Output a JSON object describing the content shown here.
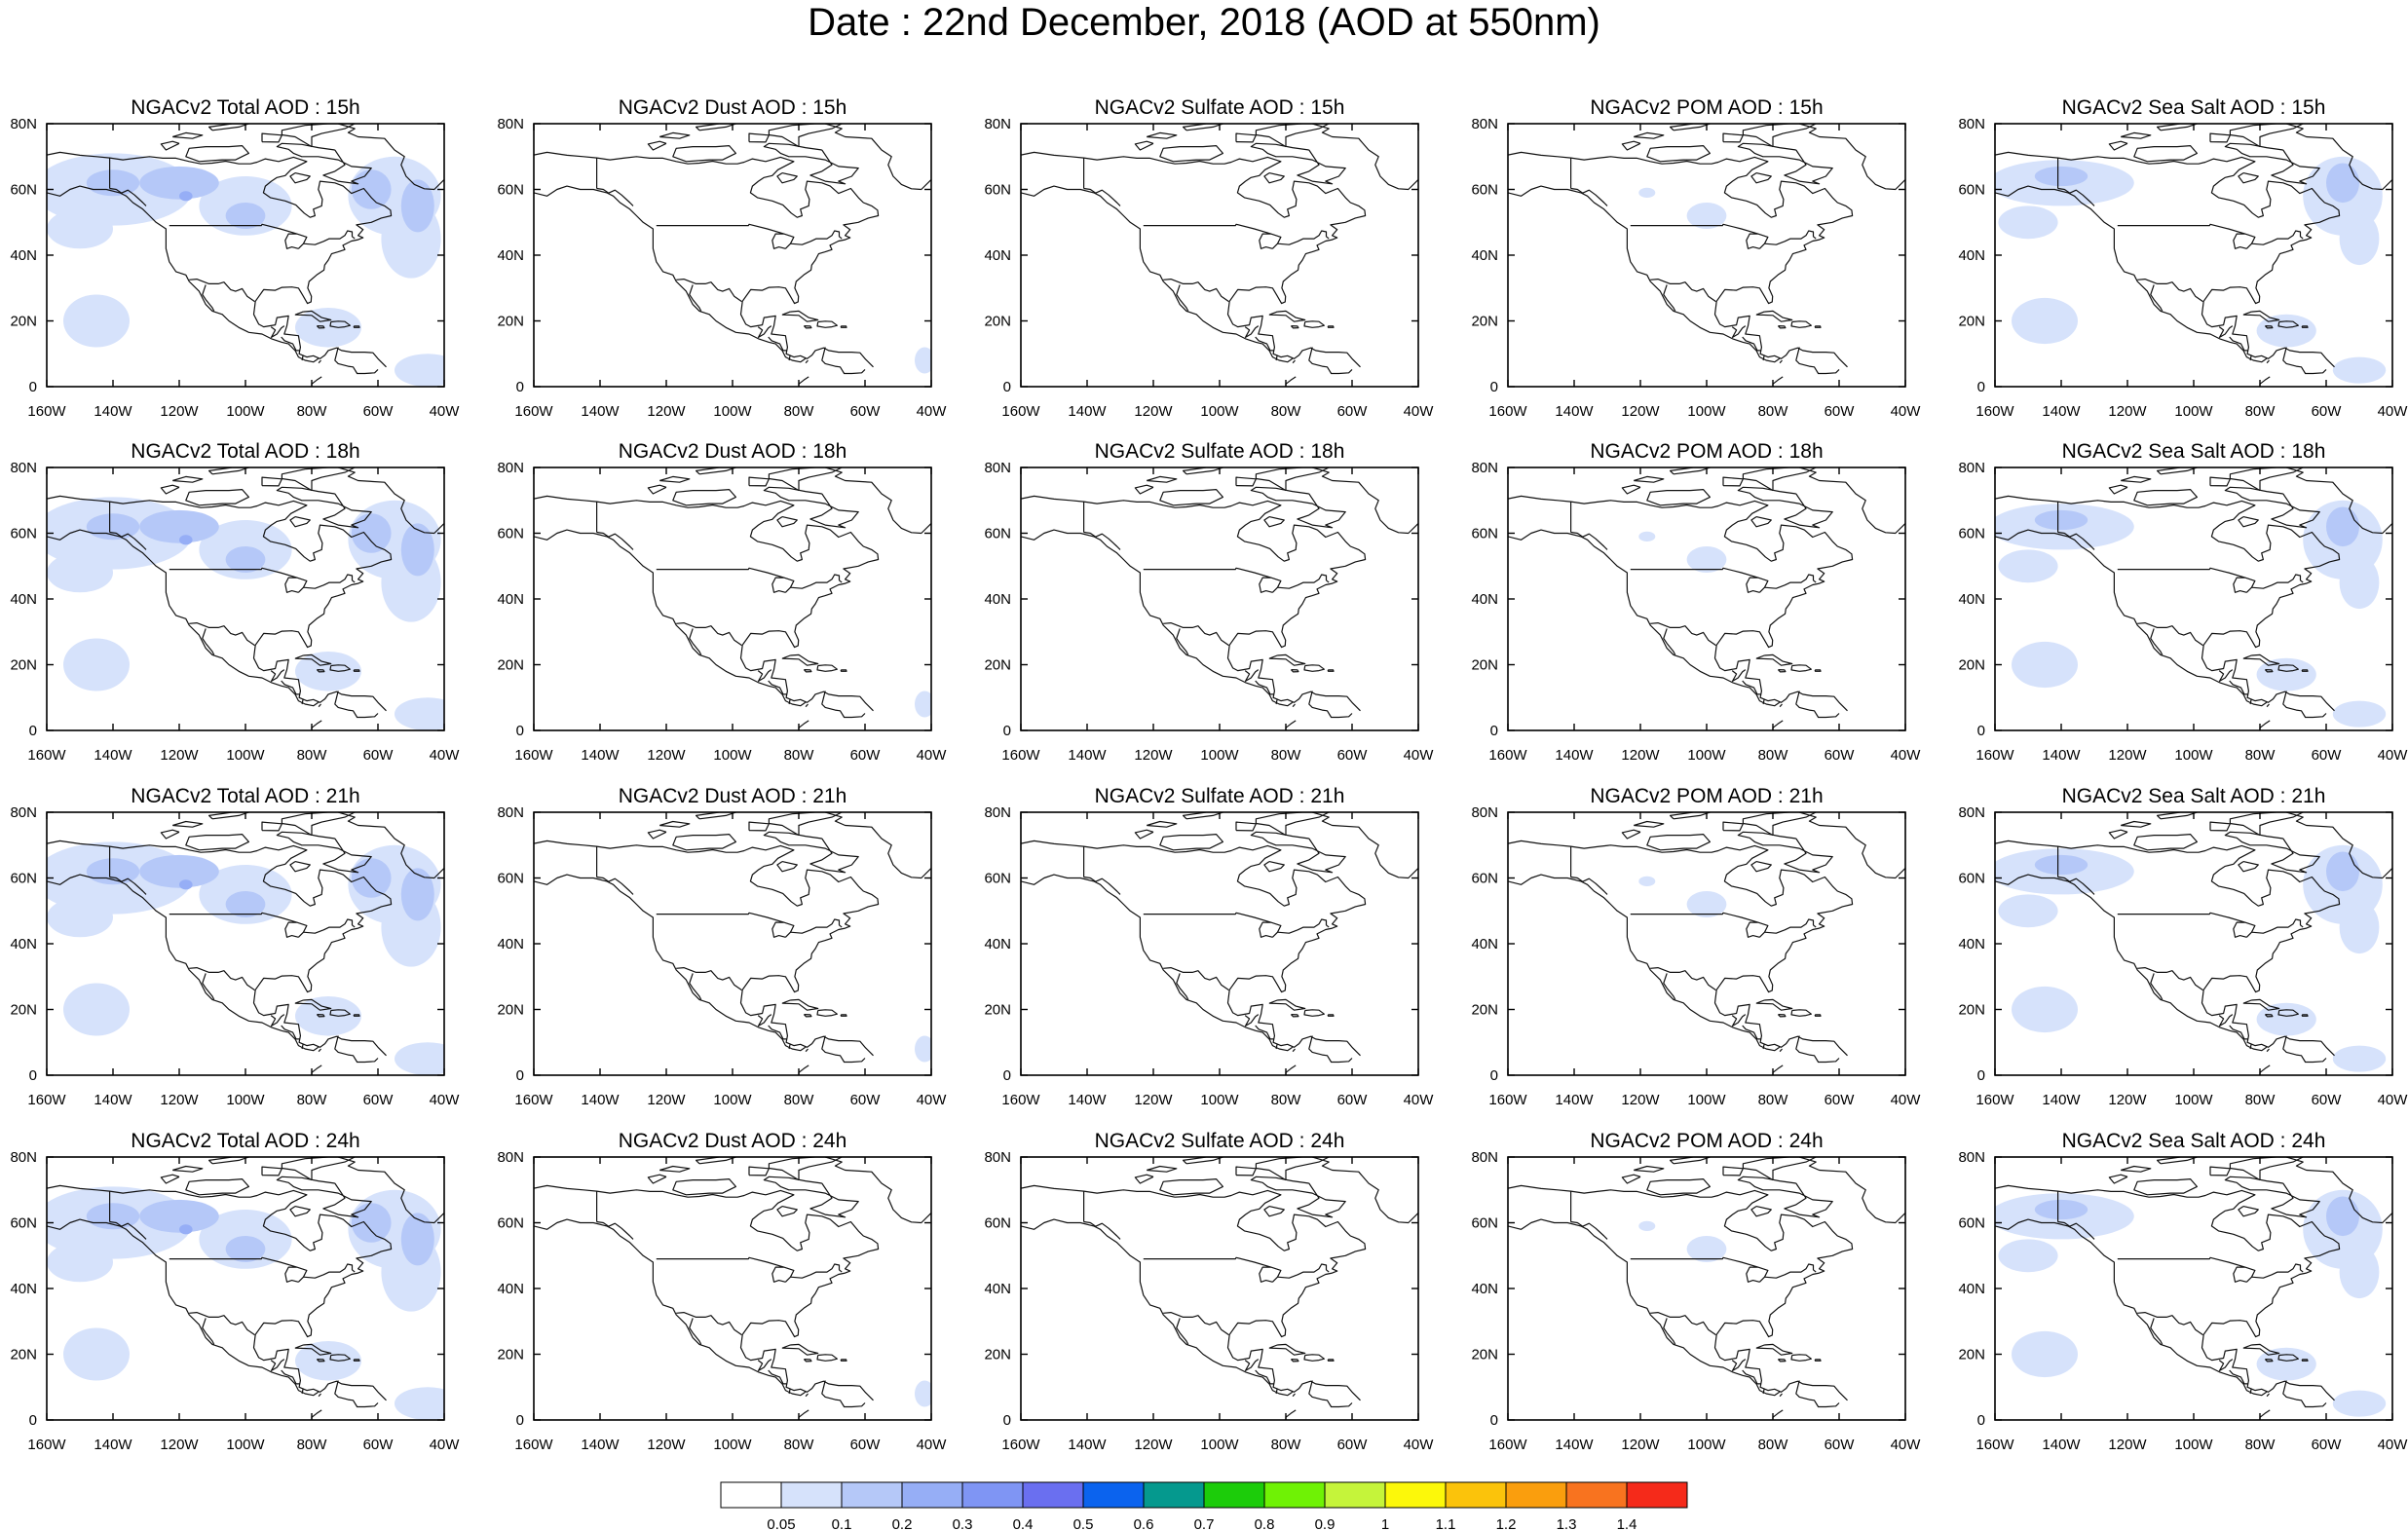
{
  "title": "Date : 22nd December, 2018 (AOD at 550nm)",
  "panels": [
    {
      "title": "NGACv2 Total AOD : 15h",
      "species": "total",
      "hour": "15h"
    },
    {
      "title": "NGACv2 Dust AOD : 15h",
      "species": "dust",
      "hour": "15h"
    },
    {
      "title": "NGACv2 Sulfate AOD : 15h",
      "species": "sulfate",
      "hour": "15h"
    },
    {
      "title": "NGACv2 POM AOD : 15h",
      "species": "pom",
      "hour": "15h"
    },
    {
      "title": "NGACv2 Sea Salt AOD : 15h",
      "species": "seasalt",
      "hour": "15h"
    },
    {
      "title": "NGACv2 Total AOD : 18h",
      "species": "total",
      "hour": "18h"
    },
    {
      "title": "NGACv2 Dust AOD : 18h",
      "species": "dust",
      "hour": "18h"
    },
    {
      "title": "NGACv2 Sulfate AOD : 18h",
      "species": "sulfate",
      "hour": "18h"
    },
    {
      "title": "NGACv2 POM AOD : 18h",
      "species": "pom",
      "hour": "18h"
    },
    {
      "title": "NGACv2 Sea Salt AOD : 18h",
      "species": "seasalt",
      "hour": "18h"
    },
    {
      "title": "NGACv2 Total AOD : 21h",
      "species": "total",
      "hour": "21h"
    },
    {
      "title": "NGACv2 Dust AOD : 21h",
      "species": "dust",
      "hour": "21h"
    },
    {
      "title": "NGACv2 Sulfate AOD : 21h",
      "species": "sulfate",
      "hour": "21h"
    },
    {
      "title": "NGACv2 POM AOD : 21h",
      "species": "pom",
      "hour": "21h"
    },
    {
      "title": "NGACv2 Sea Salt AOD : 21h",
      "species": "seasalt",
      "hour": "21h"
    },
    {
      "title": "NGACv2 Total AOD : 24h",
      "species": "total",
      "hour": "24h"
    },
    {
      "title": "NGACv2 Dust AOD : 24h",
      "species": "dust",
      "hour": "24h"
    },
    {
      "title": "NGACv2 Sulfate AOD : 24h",
      "species": "sulfate",
      "hour": "24h"
    },
    {
      "title": "NGACv2 POM AOD : 24h",
      "species": "pom",
      "hour": "24h"
    },
    {
      "title": "NGACv2 Sea Salt  AOD : 24h",
      "species": "seasalt",
      "hour": "24h"
    }
  ],
  "x_ticks": [
    "160W",
    "140W",
    "120W",
    "100W",
    "80W",
    "60W",
    "40W"
  ],
  "y_ticks": [
    "0",
    "20N",
    "40N",
    "60N",
    "80N"
  ],
  "map_extent": {
    "lon": [
      -160,
      -40
    ],
    "lat": [
      0,
      80
    ]
  },
  "colorbar": {
    "labels": [
      "0.05",
      "0.1",
      "0.2",
      "0.3",
      "0.4",
      "0.5",
      "0.6",
      "0.7",
      "0.8",
      "0.9",
      "1",
      "1.1",
      "1.2",
      "1.3",
      "1.4"
    ],
    "colors": [
      "#ffffff",
      "#d6e2fb",
      "#b5c8f8",
      "#96aef6",
      "#7f95f4",
      "#6a6ff0",
      "#0b63ee",
      "#05998e",
      "#1ccc0a",
      "#6ff205",
      "#c5f43a",
      "#fcf80a",
      "#fbc30b",
      "#fa9e0d",
      "#f8731f",
      "#f52a1a"
    ]
  }
}
